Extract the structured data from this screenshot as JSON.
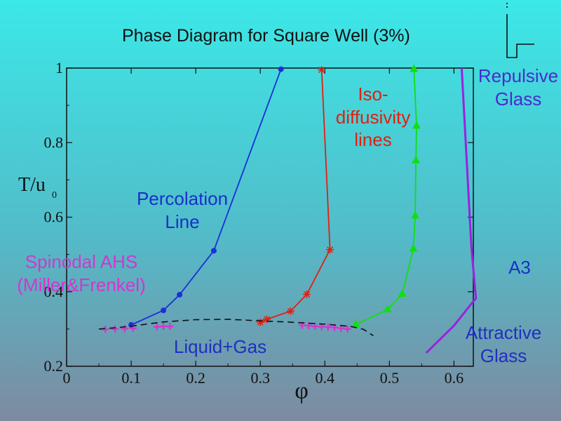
{
  "chart_data": {
    "type": "line",
    "title": "Phase Diagram for Square Well  (3%)",
    "xlabel": "φ",
    "ylabel": "T/u",
    "ylabel_sub": "0",
    "xlim": [
      0,
      0.63
    ],
    "ylim": [
      0.2,
      1.0
    ],
    "xticks": [
      "0",
      "0.1",
      "0.2",
      "0.3",
      "0.4",
      "0.5",
      "0.6"
    ],
    "yticks": [
      "0.2",
      "0.4",
      "0.6",
      "0.8",
      "1"
    ],
    "annotations": {
      "iso": "Iso-\ndiffusivity\nlines",
      "repulsive": "Repulsive\nGlass",
      "percolation": "Percolation\nLine",
      "spinodal": "Spinodal AHS\n(Miller&Frenkel)",
      "a3": "A3",
      "liquid_gas": "Liquid+Gas",
      "attractive": "Attractive\nGlass"
    },
    "series": [
      {
        "color": "#1a30d8",
        "marker": "circle",
        "x": [
          0.1,
          0.15,
          0.175,
          0.228,
          0.332
        ],
        "y": [
          0.311,
          0.35,
          0.392,
          0.51,
          0.997
        ]
      },
      {
        "color": "#e02010",
        "marker": "star",
        "x": [
          0.3,
          0.31,
          0.347,
          0.372,
          0.408,
          0.395
        ],
        "y": [
          0.318,
          0.326,
          0.348,
          0.393,
          0.513,
          0.995
        ]
      },
      {
        "color": "#10e010",
        "marker": "triangle",
        "x": [
          0.448,
          0.497,
          0.52,
          0.537,
          0.54,
          0.541,
          0.542,
          0.538
        ],
        "y": [
          0.312,
          0.352,
          0.394,
          0.515,
          0.604,
          0.752,
          0.845,
          0.997
        ]
      },
      {
        "color": "#9a22e0",
        "marker": "none",
        "x": [
          0.557,
          0.6,
          0.628,
          0.634,
          0.627,
          0.612
        ],
        "y": [
          0.236,
          0.309,
          0.37,
          0.382,
          0.52,
          1.0
        ]
      },
      {
        "color": "#d236d0",
        "marker": "plus",
        "x": [
          0.06,
          0.075,
          0.09,
          0.103,
          0.14,
          0.15,
          0.16,
          0.365,
          0.375,
          0.385,
          0.395,
          0.405,
          0.415,
          0.425,
          0.435
        ],
        "y": [
          0.299,
          0.3,
          0.301,
          0.302,
          0.306,
          0.307,
          0.307,
          0.31,
          0.309,
          0.307,
          0.306,
          0.305,
          0.304,
          0.302,
          0.3
        ]
      },
      {
        "color": "#111111",
        "marker": "none",
        "dashed": true,
        "x": [
          0.05,
          0.08,
          0.11,
          0.15,
          0.2,
          0.25,
          0.3,
          0.35,
          0.4,
          0.44,
          0.46,
          0.475
        ],
        "y": [
          0.3,
          0.304,
          0.31,
          0.319,
          0.325,
          0.326,
          0.322,
          0.318,
          0.313,
          0.307,
          0.299,
          0.282
        ]
      }
    ]
  }
}
